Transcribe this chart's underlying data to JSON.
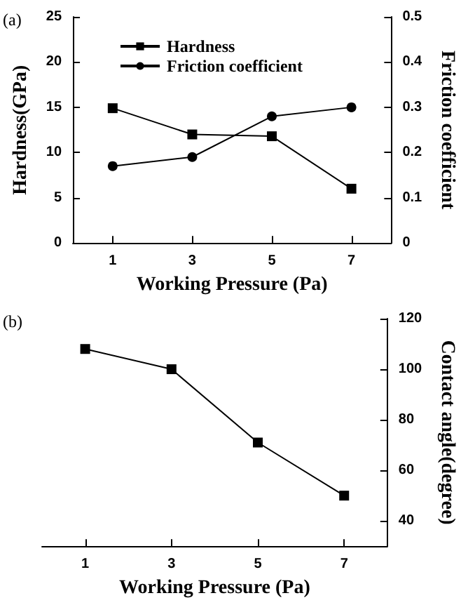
{
  "chart_data": [
    {
      "type": "line",
      "annotations": [
        "(a)"
      ],
      "xlabel": "Working Pressure (Pa)",
      "ylabel": "Hardness(GPa)",
      "y2label": "Friction coefficient",
      "x": [
        1,
        3,
        5,
        7
      ],
      "xlim": [
        0,
        8
      ],
      "xticks": [
        1,
        3,
        5,
        7
      ],
      "ylim": [
        0,
        25
      ],
      "yticks": [
        0,
        5,
        10,
        15,
        20,
        25
      ],
      "y2lim": [
        0,
        0.5
      ],
      "y2ticks": [
        0,
        0.1,
        0.2,
        0.3,
        0.4,
        0.5
      ],
      "legend": "top",
      "grid": false,
      "series": [
        {
          "name": "Hardness",
          "color": "#000000",
          "marker": "square",
          "values": [
            14.9,
            12,
            11.8,
            6
          ]
        },
        {
          "name": "Friction coefficient",
          "color": "#000000",
          "marker": "circle",
          "axis": "y2",
          "values": [
            0.17,
            0.19,
            0.28,
            0.3
          ]
        }
      ]
    },
    {
      "type": "line",
      "annotations": [
        "(b)"
      ],
      "xlabel": "Working Pressure (Pa)",
      "y2label": "Contact angle(degree)",
      "x": [
        1,
        3,
        5,
        7
      ],
      "xlim": [
        0,
        8
      ],
      "xticks": [
        1,
        3,
        5,
        7
      ],
      "y2lim": [
        30,
        120
      ],
      "y2ticks": [
        40,
        60,
        80,
        100,
        120
      ],
      "legend": false,
      "grid": false,
      "series": [
        {
          "color": "#000000",
          "marker": "square",
          "axis": "y2",
          "values": [
            108,
            100,
            71,
            50
          ]
        }
      ]
    }
  ]
}
